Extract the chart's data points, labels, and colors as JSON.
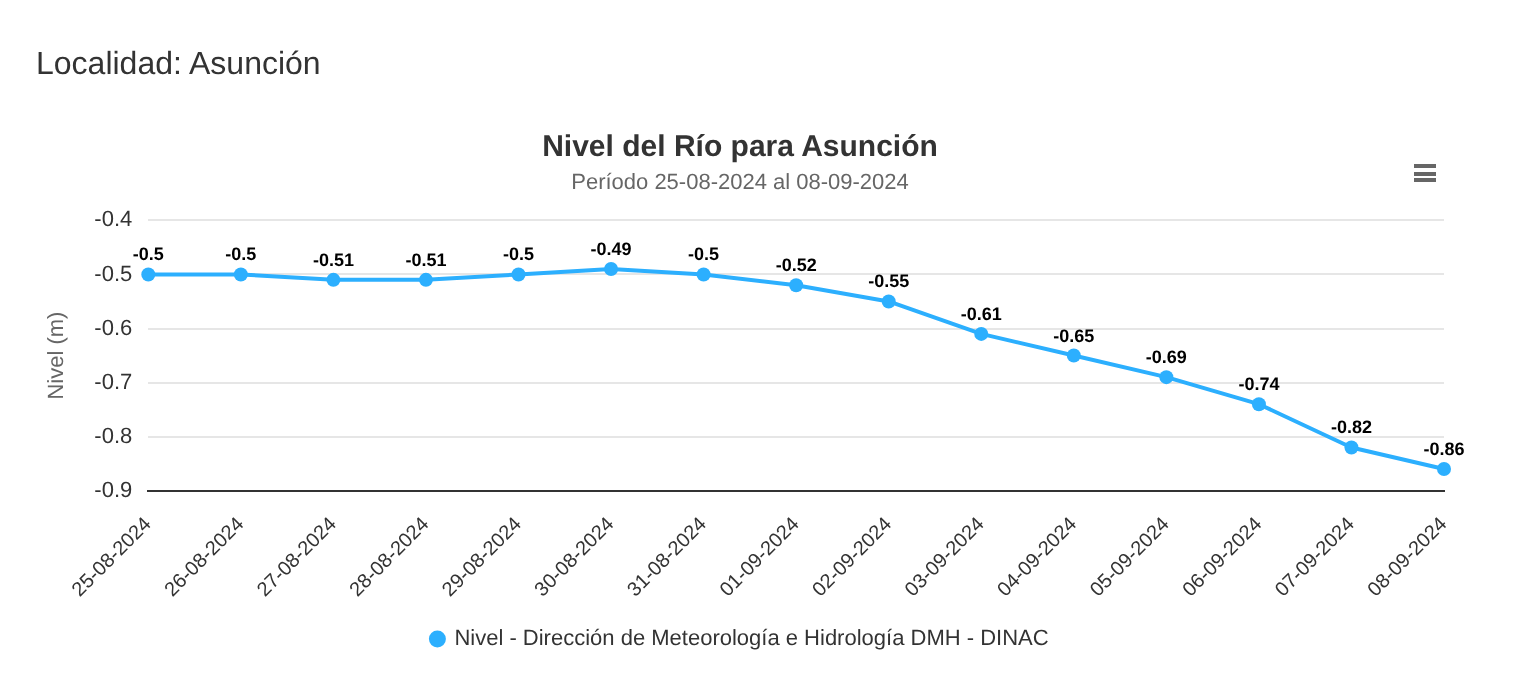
{
  "chart_data": {
    "type": "line",
    "title": "Nivel del Río para Asunción",
    "subtitle": "Período 25-08-2024 al 08-09-2024",
    "ylabel": "Nivel (m)",
    "annotations": [
      "Localidad: Asunción"
    ],
    "categories": [
      "25-08-2024",
      "26-08-2024",
      "27-08-2024",
      "28-08-2024",
      "29-08-2024",
      "30-08-2024",
      "31-08-2024",
      "01-09-2024",
      "02-09-2024",
      "03-09-2024",
      "04-09-2024",
      "05-09-2024",
      "06-09-2024",
      "07-09-2024",
      "08-09-2024"
    ],
    "series": [
      {
        "name": "Nivel - Dirección de Meteorología e Hidrología DMH - DINAC",
        "color": "#2caffe",
        "values": [
          -0.5,
          -0.5,
          -0.51,
          -0.51,
          -0.5,
          -0.49,
          -0.5,
          -0.52,
          -0.55,
          -0.61,
          -0.65,
          -0.69,
          -0.74,
          -0.82,
          -0.86
        ]
      }
    ],
    "ylim": [
      -0.9,
      -0.4
    ],
    "yticks": [
      -0.9,
      -0.8,
      -0.7,
      -0.6,
      -0.5,
      -0.4
    ],
    "grid": "y",
    "legend": "bottom",
    "marker": "circle",
    "line_style": "solid",
    "data_labels": true
  }
}
